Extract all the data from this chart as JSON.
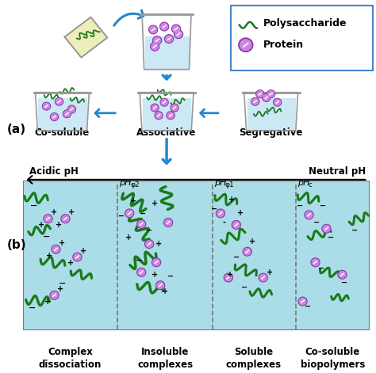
{
  "bg_color": "#ffffff",
  "teal_bg": "#aadde8",
  "green_line": "#1a7a1a",
  "protein_fill": "#cc88dd",
  "protein_ring": "#8833aa",
  "blue_arrow": "#2288cc",
  "beaker_fill": "#cce8f4",
  "beaker_outline": "#999999",
  "yellow_fill": "#eeeebb",
  "legend_border": "#4488cc",
  "title_a": "(a)",
  "title_b": "(b)",
  "legend_polysaccharide": "Polysaccharide",
  "legend_protein": "Protein",
  "label_cosoluble": "Co-soluble",
  "label_associative": "Associative",
  "label_segregative": "Segregative",
  "label_acidic": "Acidic pH",
  "label_neutral": "Neutral pH",
  "label_complex_dissoc": "Complex\ndissociation",
  "label_insoluble": "Insoluble\ncomplexes",
  "label_soluble": "Soluble\ncomplexes",
  "label_cosoluble_bio": "Co-soluble\nbiopolymers",
  "figure_width": 4.74,
  "figure_height": 4.71
}
